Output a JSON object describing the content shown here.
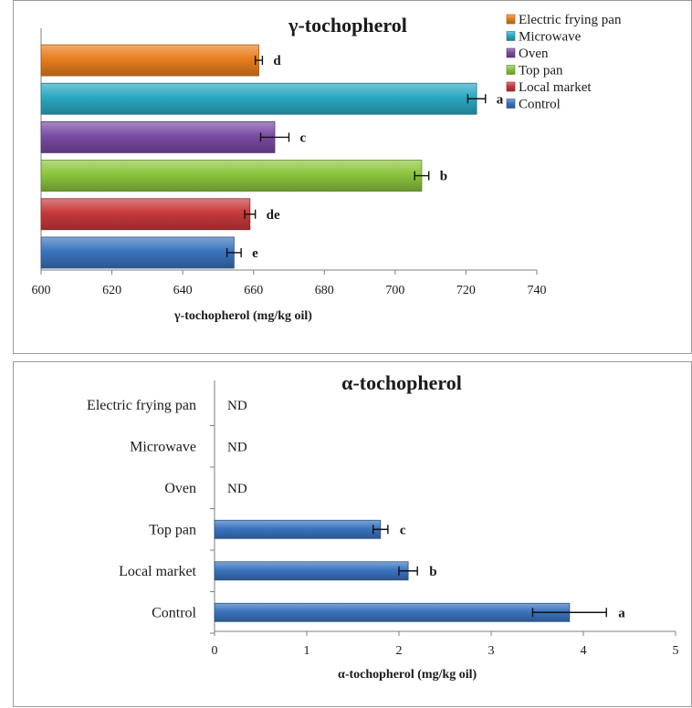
{
  "chart_data": [
    {
      "type": "bar",
      "orientation": "horizontal",
      "title": "γ-tochopherol",
      "xlabel": "γ-tochopherol  (mg/kg oil)",
      "xlim": [
        600,
        740
      ],
      "ticks": [
        "600",
        "620",
        "640",
        "660",
        "680",
        "700",
        "720",
        "740"
      ],
      "legend_position": "top-right",
      "legend": [
        {
          "label": "Electric frying pan",
          "color": "#e97e1e"
        },
        {
          "label": "Microwave",
          "color": "#2aa9c2"
        },
        {
          "label": "Oven",
          "color": "#7a4ba3"
        },
        {
          "label": "Top pan",
          "color": "#8bc53d"
        },
        {
          "label": "Local market",
          "color": "#c8393b"
        },
        {
          "label": "Control",
          "color": "#3a74bf"
        }
      ],
      "bars": [
        {
          "name": "Electric frying pan",
          "value": 661.5,
          "error": 1,
          "letter": "d",
          "color": "#e97e1e"
        },
        {
          "name": "Microwave",
          "value": 723,
          "error": 2.5,
          "letter": "a",
          "color": "#2aa9c2"
        },
        {
          "name": "Oven",
          "value": 666,
          "error": 4,
          "letter": "c",
          "color": "#7a4ba3"
        },
        {
          "name": "Top pan",
          "value": 707.5,
          "error": 2,
          "letter": "b",
          "color": "#8bc53d"
        },
        {
          "name": "Local market",
          "value": 659,
          "error": 1.5,
          "letter": "de",
          "color": "#c8393b"
        },
        {
          "name": "Control",
          "value": 654.5,
          "error": 2,
          "letter": "e",
          "color": "#3a74bf"
        }
      ]
    },
    {
      "type": "bar",
      "orientation": "horizontal",
      "title": "α-tochopherol",
      "xlabel": "α-tochopherol  (mg/kg oil)",
      "xlim": [
        0,
        5
      ],
      "ticks": [
        "0",
        "1",
        "2",
        "3",
        "4",
        "5"
      ],
      "color": "#3a74bf",
      "bars": [
        {
          "name": "Electric frying pan",
          "value": null,
          "note": "ND"
        },
        {
          "name": "Microwave",
          "value": null,
          "note": "ND"
        },
        {
          "name": "Oven",
          "value": null,
          "note": "ND"
        },
        {
          "name": "Top pan",
          "value": 1.8,
          "error": 0.08,
          "letter": "c"
        },
        {
          "name": "Local market",
          "value": 2.1,
          "error": 0.1,
          "letter": "b"
        },
        {
          "name": "Control",
          "value": 3.85,
          "error": 0.4,
          "letter": "a"
        }
      ]
    }
  ]
}
